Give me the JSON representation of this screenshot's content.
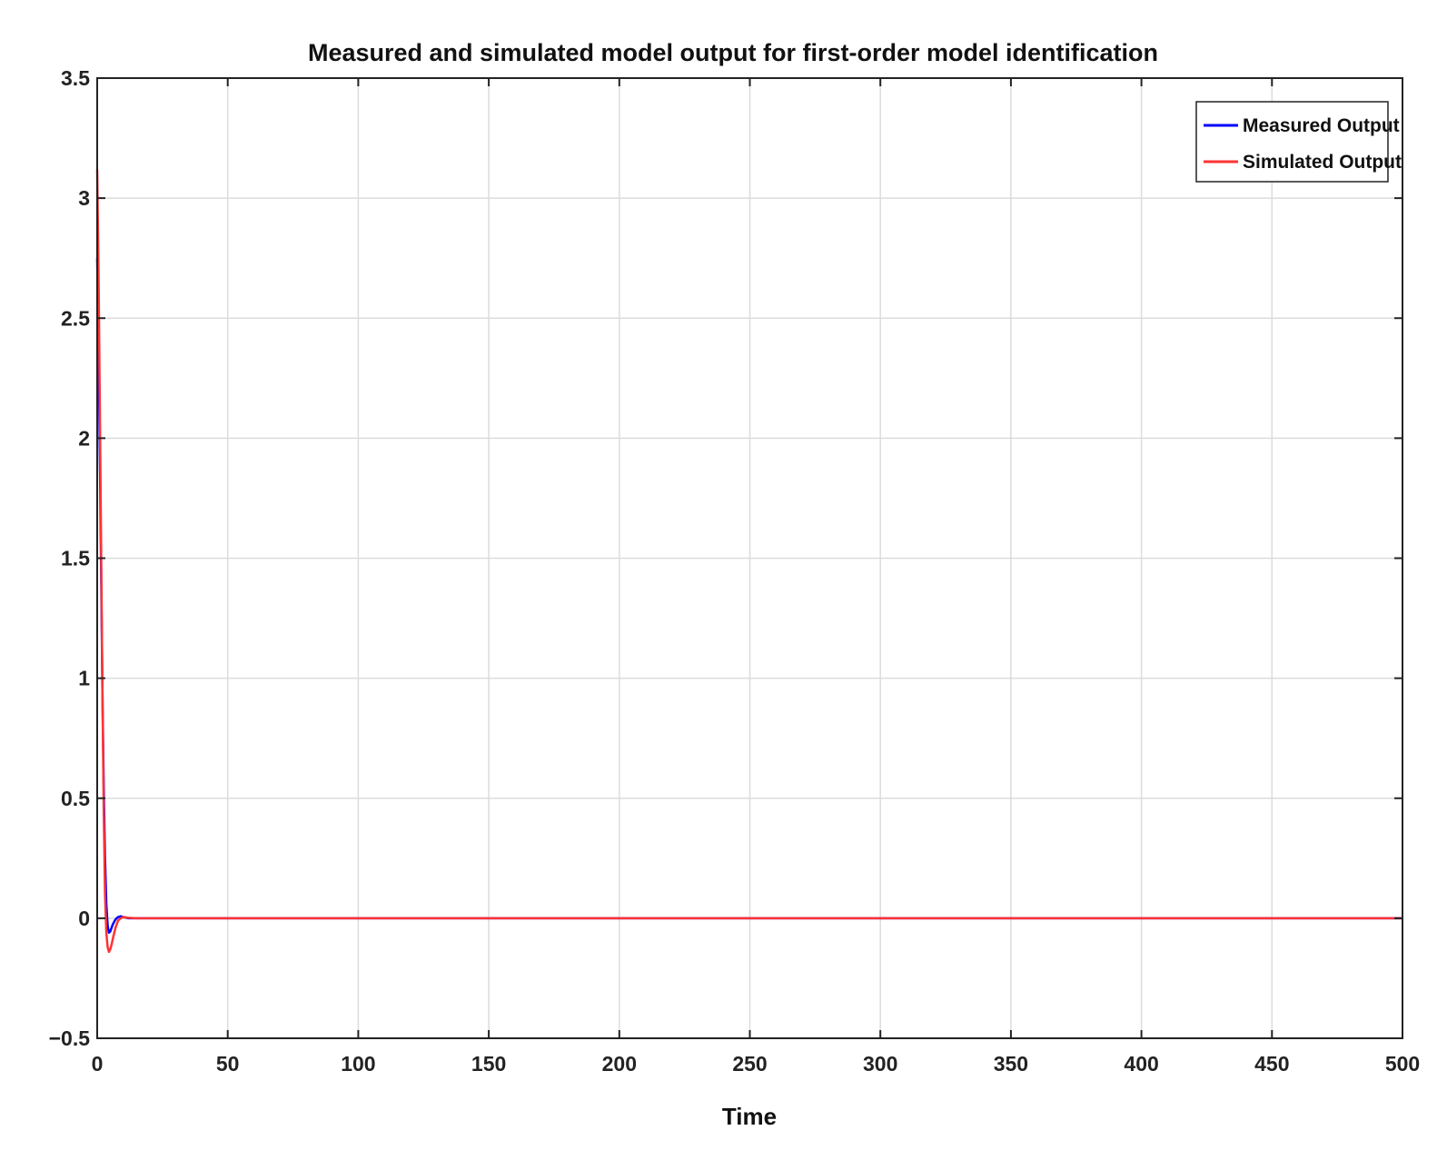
{
  "chart_data": {
    "type": "line",
    "title": "Measured and simulated model output for first-order model identification",
    "xlabel": "Time",
    "ylabel": "",
    "xlim": [
      0,
      500
    ],
    "ylim": [
      -0.5,
      3.5
    ],
    "xticks": [
      0,
      50,
      100,
      150,
      200,
      250,
      300,
      350,
      400,
      450,
      500
    ],
    "xtick_labels": [
      "0",
      "50",
      "100",
      "150",
      "200",
      "250",
      "300",
      "350",
      "400",
      "450",
      "500"
    ],
    "yticks": [
      -0.5,
      0,
      0.5,
      1,
      1.5,
      2,
      2.5,
      3,
      3.5
    ],
    "ytick_labels": [
      "−0.5",
      "0",
      "0.5",
      "1",
      "1.5",
      "2",
      "2.5",
      "3",
      "3.5"
    ],
    "grid": true,
    "legend_position": "top-right",
    "series": [
      {
        "name": "Measured Output",
        "color": "#0000ff",
        "x": [
          0,
          0.5,
          1,
          1.5,
          2,
          2.5,
          3,
          3.5,
          4,
          4.5,
          5,
          5.5,
          6,
          7,
          8,
          9,
          10,
          12,
          15,
          20,
          50,
          100,
          200,
          300,
          400,
          500
        ],
        "y": [
          2.75,
          2.4,
          1.95,
          1.45,
          0.95,
          0.55,
          0.25,
          0.06,
          -0.03,
          -0.06,
          -0.055,
          -0.04,
          -0.025,
          -0.005,
          0.005,
          0.008,
          0.005,
          0.0,
          0.0,
          0.0,
          0.0,
          0.0,
          0.0,
          0.0,
          0.0,
          0.0
        ]
      },
      {
        "name": "Simulated Output",
        "color": "#ff3333",
        "x": [
          0,
          0.5,
          1,
          1.5,
          2,
          2.5,
          3,
          3.5,
          4,
          4.5,
          5,
          5.5,
          6,
          7,
          8,
          9,
          10,
          12,
          15,
          20,
          50,
          100,
          200,
          300,
          400,
          500
        ],
        "y": [
          3.12,
          2.7,
          2.15,
          1.55,
          0.95,
          0.45,
          0.1,
          -0.06,
          -0.12,
          -0.14,
          -0.13,
          -0.11,
          -0.085,
          -0.04,
          -0.01,
          0.0,
          0.005,
          0.002,
          0.0,
          0.0,
          0.0,
          0.0,
          0.0,
          0.0,
          0.0,
          0.0
        ]
      }
    ]
  }
}
